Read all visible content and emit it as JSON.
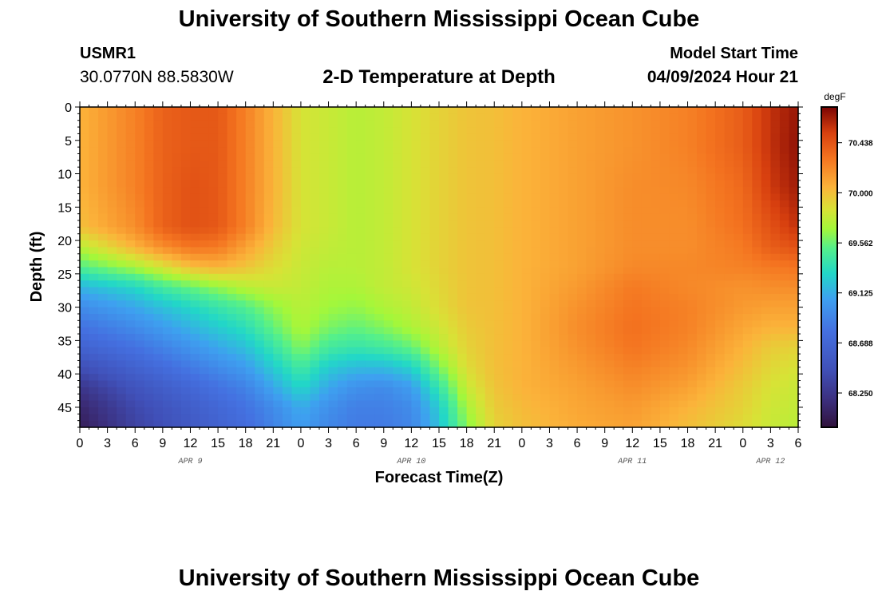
{
  "header": {
    "title": "University of Southern Mississippi Ocean Cube",
    "station_id": "USMR1",
    "coordinates": "30.0770N  88.5830W",
    "subtitle": "2-D Temperature at Depth",
    "model_start_label": "Model Start Time",
    "model_start_value": "04/09/2024 Hour 21"
  },
  "footer": {
    "title": "University of Southern Mississippi Ocean Cube"
  },
  "chart_data": {
    "type": "heatmap",
    "title": "2-D Temperature at Depth",
    "xlabel": "Forecast Time(Z)",
    "ylabel": "Depth (ft)",
    "x_hours_range": [
      0,
      78
    ],
    "y_depth_range_ft": [
      0,
      48
    ],
    "x_tick_labels": [
      "0",
      "3",
      "6",
      "9",
      "12",
      "15",
      "18",
      "21",
      "0",
      "3",
      "6",
      "9",
      "12",
      "15",
      "18",
      "21",
      "0",
      "3",
      "6",
      "9",
      "12",
      "15",
      "18",
      "21",
      "0",
      "3",
      "6"
    ],
    "day_labels": [
      {
        "text": "APR 9",
        "hour": 12
      },
      {
        "text": "APR 10",
        "hour": 36
      },
      {
        "text": "APR 11",
        "hour": 60
      },
      {
        "text": "APR 12",
        "hour": 75
      }
    ],
    "y_ticks": [
      0,
      5,
      10,
      15,
      20,
      25,
      30,
      35,
      40,
      45
    ],
    "colorbar": {
      "unit": "degF",
      "range": [
        67.95,
        70.75
      ],
      "ticks": [
        "70.438",
        "70.000",
        "69.562",
        "69.125",
        "68.688",
        "68.250"
      ],
      "tick_values": [
        70.438,
        70.0,
        69.562,
        69.125,
        68.688,
        68.25
      ]
    },
    "depth_rows_ft": [
      0,
      6,
      12,
      18,
      21,
      24,
      27,
      30,
      33,
      36,
      39,
      42,
      45,
      48
    ],
    "time_cols_hours": [
      0,
      6,
      9,
      12,
      15,
      18,
      21,
      24,
      27,
      30,
      33,
      36,
      39,
      42,
      45,
      48,
      54,
      60,
      66,
      72,
      75,
      78
    ],
    "temperature_grid_degF": [
      [
        70.05,
        70.25,
        70.38,
        70.42,
        70.42,
        70.25,
        70.05,
        69.85,
        69.8,
        69.75,
        69.78,
        69.85,
        69.92,
        69.98,
        70.0,
        70.05,
        70.12,
        70.18,
        70.25,
        70.4,
        70.58,
        70.68
      ],
      [
        70.05,
        70.25,
        70.38,
        70.42,
        70.42,
        70.25,
        70.05,
        69.85,
        69.8,
        69.75,
        69.78,
        69.85,
        69.92,
        69.98,
        70.0,
        70.05,
        70.12,
        70.18,
        70.25,
        70.4,
        70.58,
        70.7
      ],
      [
        70.05,
        70.25,
        70.38,
        70.45,
        70.42,
        70.25,
        70.05,
        69.85,
        69.8,
        69.75,
        69.78,
        69.85,
        69.92,
        69.98,
        70.0,
        70.05,
        70.12,
        70.2,
        70.22,
        70.35,
        70.55,
        70.66
      ],
      [
        70.0,
        70.2,
        70.38,
        70.45,
        70.42,
        70.25,
        70.02,
        69.85,
        69.8,
        69.75,
        69.78,
        69.85,
        69.92,
        69.98,
        70.0,
        70.05,
        70.12,
        70.2,
        70.2,
        70.32,
        70.45,
        70.58
      ],
      [
        69.75,
        70.05,
        70.2,
        70.3,
        70.28,
        70.12,
        69.95,
        69.82,
        69.78,
        69.75,
        69.78,
        69.85,
        69.92,
        69.98,
        70.0,
        70.05,
        70.12,
        70.2,
        70.2,
        70.28,
        70.4,
        70.45
      ],
      [
        69.5,
        69.7,
        69.85,
        70.0,
        70.05,
        69.98,
        69.88,
        69.8,
        69.75,
        69.75,
        69.78,
        69.85,
        69.92,
        69.98,
        70.0,
        70.05,
        70.12,
        70.22,
        70.22,
        70.25,
        70.28,
        70.3
      ],
      [
        69.15,
        69.3,
        69.45,
        69.55,
        69.65,
        69.75,
        69.8,
        69.78,
        69.72,
        69.72,
        69.78,
        69.82,
        69.9,
        69.98,
        70.0,
        70.05,
        70.15,
        70.28,
        70.22,
        70.18,
        70.2,
        70.2
      ],
      [
        68.95,
        69.1,
        69.2,
        69.3,
        69.4,
        69.5,
        69.65,
        69.75,
        69.68,
        69.65,
        69.72,
        69.78,
        69.88,
        69.98,
        70.0,
        70.05,
        70.18,
        70.3,
        70.25,
        70.15,
        70.12,
        70.12
      ],
      [
        68.8,
        68.95,
        69.05,
        69.15,
        69.25,
        69.35,
        69.55,
        69.72,
        69.6,
        69.55,
        69.62,
        69.72,
        69.82,
        69.95,
        70.0,
        70.05,
        70.2,
        70.32,
        70.25,
        70.1,
        70.05,
        70.05
      ],
      [
        68.65,
        68.8,
        68.9,
        69.0,
        69.1,
        69.2,
        69.4,
        69.62,
        69.45,
        69.4,
        69.45,
        69.55,
        69.75,
        69.92,
        70.0,
        70.05,
        70.18,
        70.3,
        70.22,
        70.05,
        69.95,
        69.92
      ],
      [
        68.45,
        68.65,
        68.75,
        68.85,
        68.95,
        69.05,
        69.25,
        69.45,
        69.25,
        69.18,
        69.18,
        69.28,
        69.6,
        69.88,
        70.0,
        70.05,
        70.15,
        70.25,
        70.18,
        70.0,
        69.9,
        69.85
      ],
      [
        68.25,
        68.5,
        68.6,
        68.7,
        68.8,
        68.9,
        69.1,
        69.3,
        69.1,
        68.98,
        68.95,
        69.05,
        69.4,
        69.8,
        69.98,
        70.05,
        70.12,
        70.2,
        70.12,
        69.95,
        69.85,
        69.8
      ],
      [
        68.12,
        68.4,
        68.5,
        68.6,
        68.7,
        68.8,
        68.95,
        69.12,
        68.98,
        68.88,
        68.88,
        68.95,
        69.25,
        69.7,
        69.95,
        70.02,
        70.1,
        70.15,
        70.05,
        69.92,
        69.82,
        69.78
      ],
      [
        68.05,
        68.35,
        68.45,
        68.55,
        68.65,
        68.75,
        68.9,
        69.05,
        68.92,
        68.85,
        68.85,
        68.92,
        69.2,
        69.62,
        69.92,
        70.0,
        70.08,
        70.12,
        70.0,
        69.88,
        69.8,
        69.75
      ]
    ]
  }
}
